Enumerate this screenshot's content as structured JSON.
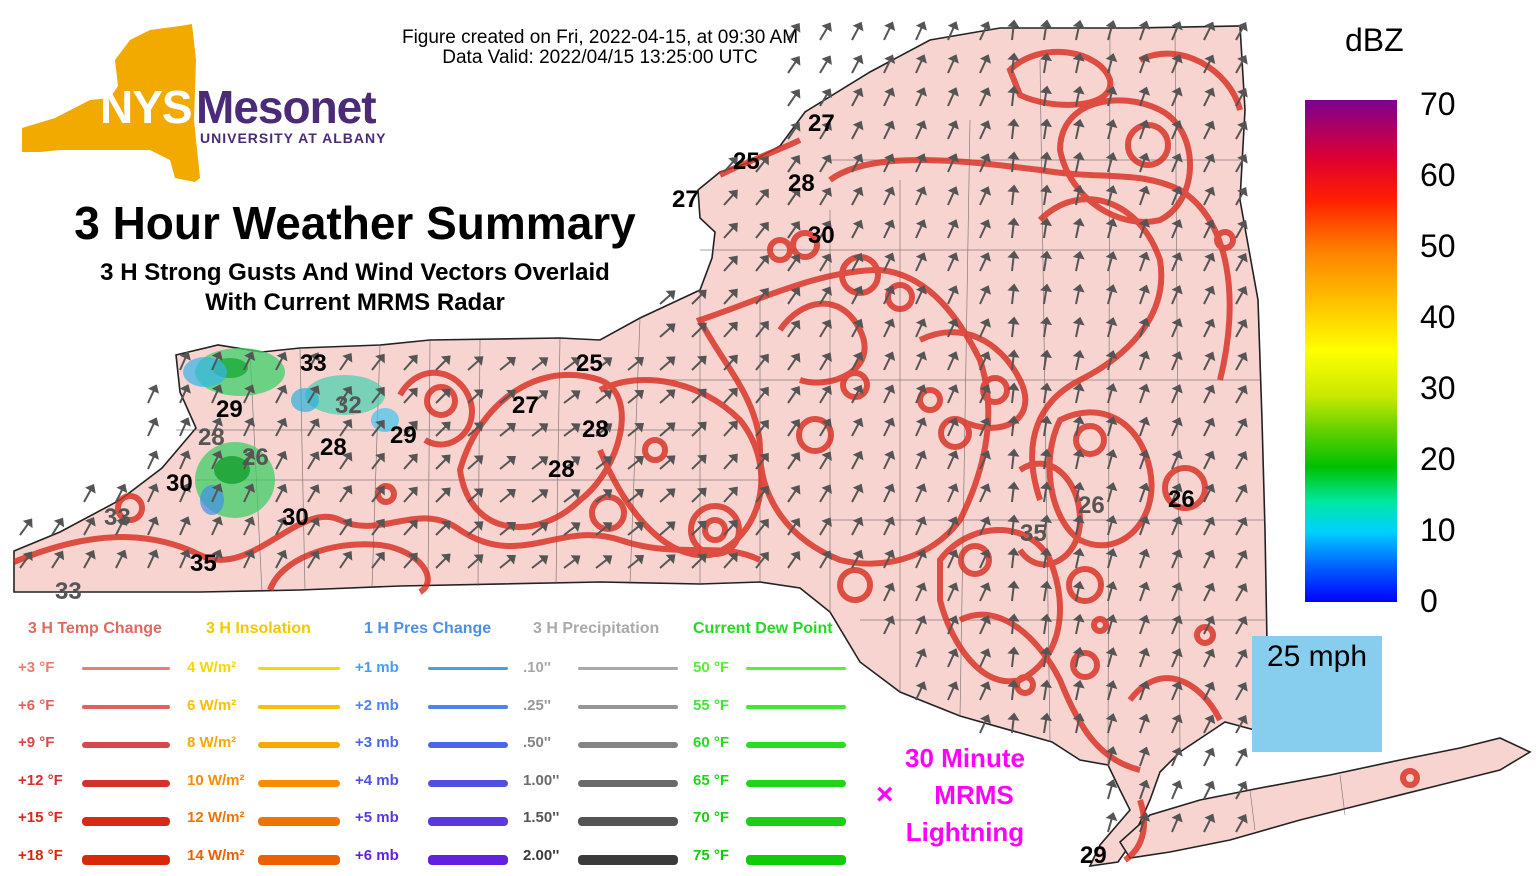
{
  "header": {
    "created": "Figure created on Fri, 2022-04-15, at 09:30 AM",
    "valid": "Data Valid: 2022/04/15 13:25:00 UTC"
  },
  "logo": {
    "nys": "NYS",
    "mesonet": "Mesonet",
    "university": "UNIVERSITY AT ALBANY"
  },
  "title": "3 Hour Weather Summary",
  "subtitle_line1": "3 H Strong Gusts And Wind Vectors Overlaid",
  "subtitle_line2": "With Current MRMS Radar",
  "colorbar": {
    "unit": "dBZ",
    "ticks": [
      "70",
      "60",
      "50",
      "40",
      "30",
      "20",
      "10",
      "0"
    ]
  },
  "wind_scale": {
    "label": "25 mph",
    "arrow_icon": "arrow-right-icon"
  },
  "lightning": {
    "line1": "30 Minute",
    "line2": "MRMS",
    "line3": "Lightning",
    "marker": "×"
  },
  "legend": {
    "temp": {
      "title": "3 H Temp Change",
      "color": "#e06a5e",
      "items": [
        "+3 °F",
        "+6 °F",
        "+9 °F",
        "+12 °F",
        "+15 °F",
        "+18 °F"
      ],
      "colors": [
        "#e87e70",
        "#e0605a",
        "#d84848",
        "#d43030",
        "#d82818",
        "#d82808"
      ]
    },
    "insolation": {
      "title": "3 H Insolation",
      "color": "#f2c800",
      "items": [
        "4 W/m²",
        "6 W/m²",
        "8 W/m²",
        "10 W/m²",
        "12 W/m²",
        "14 W/m²"
      ],
      "colors": [
        "#f5d800",
        "#f8c000",
        "#f8a800",
        "#f88c00",
        "#f07400",
        "#ec6000"
      ]
    },
    "pressure": {
      "title": "1 H Pres Change",
      "color": "#4a90e8",
      "items": [
        "+1 mb",
        "+2 mb",
        "+3 mb",
        "+4 mb",
        "+5 mb",
        "+6 mb"
      ],
      "colors": [
        "#4a9cec",
        "#4a84f0",
        "#4a66ec",
        "#5050e0",
        "#5a38e0",
        "#6420e0"
      ]
    },
    "precip": {
      "title": "3 H Precipitation",
      "color": "#aaaaaa",
      "items": [
        ".10''",
        ".25''",
        ".50''",
        "1.00''",
        "1.50''",
        "2.00''"
      ],
      "colors": [
        "#a8a8a8",
        "#969696",
        "#848484",
        "#6a6a6a",
        "#545454",
        "#3a3a3a"
      ]
    },
    "dewpoint": {
      "title": "Current Dew Point",
      "color": "#28d828",
      "items": [
        "50 °F",
        "55 °F",
        "60 °F",
        "65 °F",
        "70 °F",
        "75 °F"
      ],
      "colors": [
        "#58ee38",
        "#40e830",
        "#28dc20",
        "#20d418",
        "#18d010",
        "#10cc08"
      ]
    }
  },
  "gusts": [
    {
      "v": "27",
      "g": false
    },
    {
      "v": "25",
      "g": false
    },
    {
      "v": "28",
      "g": false
    },
    {
      "v": "27",
      "g": false
    },
    {
      "v": "30",
      "g": false
    },
    {
      "v": "33",
      "g": false
    },
    {
      "v": "32",
      "g": true
    },
    {
      "v": "29",
      "g": false
    },
    {
      "v": "28",
      "g": false
    },
    {
      "v": "29",
      "g": false
    },
    {
      "v": "28",
      "g": true
    },
    {
      "v": "26",
      "g": true
    },
    {
      "v": "30",
      "g": false
    },
    {
      "v": "33",
      "g": true
    },
    {
      "v": "30",
      "g": false
    },
    {
      "v": "35",
      "g": false
    },
    {
      "v": "33",
      "g": true
    },
    {
      "v": "25",
      "g": false
    },
    {
      "v": "27",
      "g": false
    },
    {
      "v": "28",
      "g": false
    },
    {
      "v": "28",
      "g": false
    },
    {
      "v": "26",
      "g": true
    },
    {
      "v": "26",
      "g": false
    },
    {
      "v": "35",
      "g": true
    },
    {
      "v": "29",
      "g": false
    }
  ],
  "map_colors": {
    "state_fill": "#f7d4d0",
    "contour": "#d82c1e",
    "arrow": "#555555"
  }
}
